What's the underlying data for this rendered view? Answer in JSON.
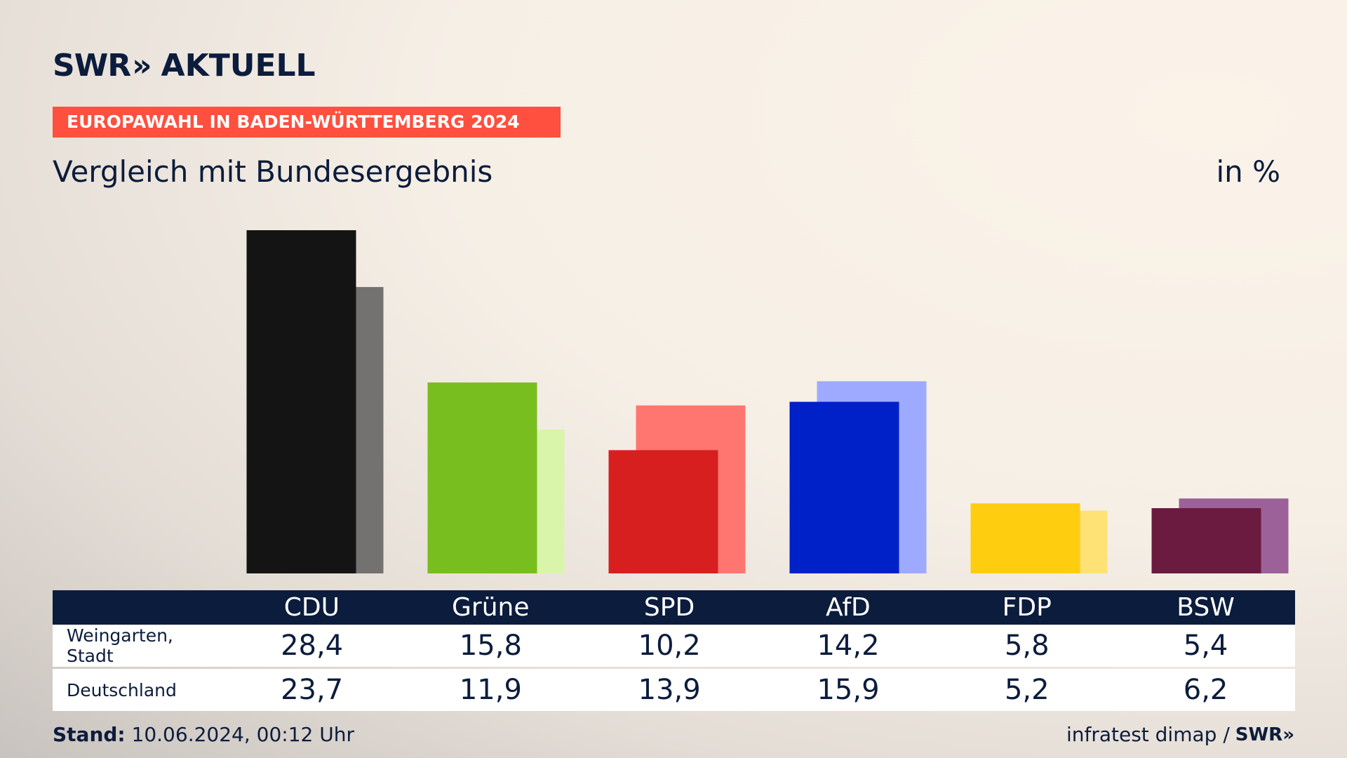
{
  "header": {
    "logo_swr": "SWR",
    "logo_arrows": "»",
    "logo_aktuell": "AKTUELL",
    "banner": "EUROPAWAHL IN BADEN-WÜRTTEMBERG 2024",
    "subtitle": "Vergleich mit Bundesergebnis",
    "unit": "in %"
  },
  "table": {
    "rows": [
      {
        "label": "Weingarten, Stadt"
      },
      {
        "label": "Deutschland"
      }
    ]
  },
  "footer": {
    "stand_label": "Stand:",
    "stand_value": "10.06.2024, 00:12 Uhr",
    "source": "infratest dimap /",
    "source_logo": "SWR»"
  },
  "colors": {
    "banner": "#ff4f3e",
    "navy": "#0c1c3c"
  },
  "chart_data": {
    "type": "bar",
    "categories": [
      "CDU",
      "Grüne",
      "SPD",
      "AfD",
      "FDP",
      "BSW"
    ],
    "series": [
      {
        "name": "Weingarten, Stadt",
        "values": [
          28.4,
          15.8,
          10.2,
          14.2,
          5.8,
          5.4
        ],
        "labels": [
          "28,4",
          "15,8",
          "10,2",
          "14,2",
          "5,8",
          "5,4"
        ],
        "colors": [
          "#141414",
          "#78be1e",
          "#d71f1f",
          "#0020c8",
          "#ffcd0f",
          "#6b1a40"
        ]
      },
      {
        "name": "Deutschland",
        "values": [
          23.7,
          11.9,
          13.9,
          15.9,
          5.2,
          6.2
        ],
        "labels": [
          "23,7",
          "11,9",
          "13,9",
          "15,9",
          "5,2",
          "6,2"
        ],
        "colors": [
          "#747270",
          "#d8f5aa",
          "#ff7670",
          "#9eaaff",
          "#ffe275",
          "#9c6198"
        ]
      }
    ],
    "title": "Vergleich mit Bundesergebnis",
    "ylabel": "in %",
    "ylim": [
      0,
      28.4
    ]
  }
}
